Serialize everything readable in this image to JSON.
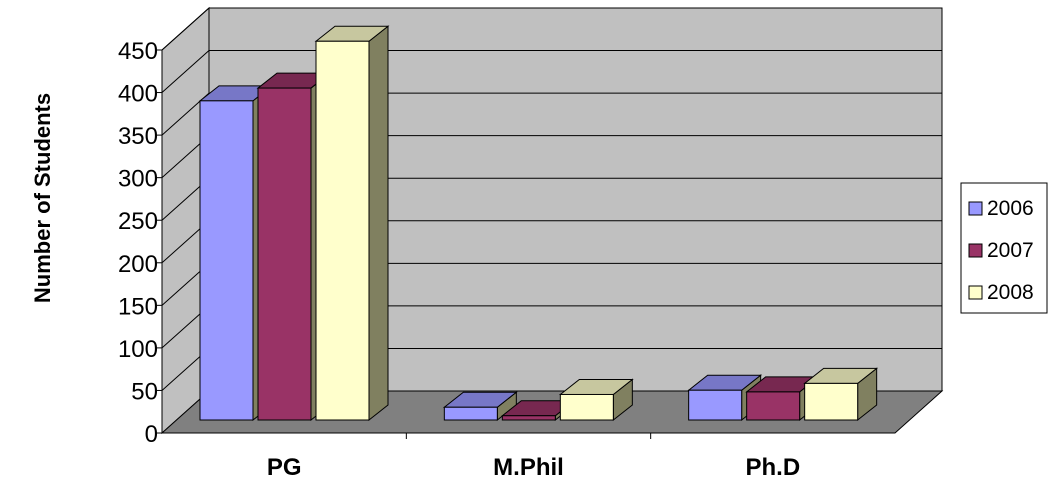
{
  "chart_data": {
    "type": "bar",
    "title": "",
    "xlabel": "",
    "ylabel": "Number of Students",
    "ylim": [
      0,
      450
    ],
    "yticks": [
      "0",
      "50",
      "100",
      "150",
      "200",
      "250",
      "300",
      "350",
      "400",
      "450"
    ],
    "categories": [
      "PG",
      "M.Phil",
      "Ph.D"
    ],
    "series": [
      {
        "name": "2006",
        "values": [
          375,
          15,
          35
        ],
        "color": "#9999ff"
      },
      {
        "name": "2007",
        "values": [
          390,
          5,
          33
        ],
        "color": "#993366"
      },
      {
        "name": "2008",
        "values": [
          445,
          30,
          43
        ],
        "color": "#ffffcc"
      }
    ],
    "grid": true,
    "legend": "right",
    "style": "3d-clustered-column"
  }
}
